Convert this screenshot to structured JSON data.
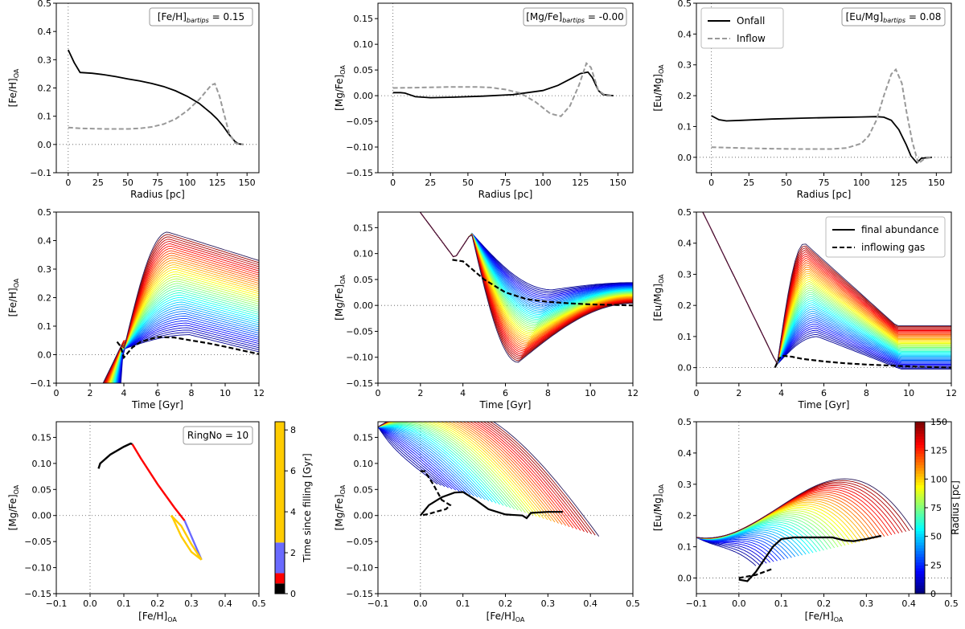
{
  "figure": {
    "colorbar_time": {
      "label": "Time since filling [Gyr]",
      "ticks": [
        "0",
        "2",
        "4",
        "6",
        "8"
      ],
      "segments": [
        {
          "from": 0,
          "to": 0.5,
          "color": "#000000"
        },
        {
          "from": 0.5,
          "to": 1.0,
          "color": "#ff0000"
        },
        {
          "from": 1.0,
          "to": 2.5,
          "color": "#6a6aff"
        },
        {
          "from": 2.5,
          "to": 8.4,
          "color": "#ffcc00"
        }
      ],
      "range": [
        0,
        8.4
      ]
    },
    "colorbar_radius": {
      "label": "Radius [pc]",
      "ticks": [
        "0",
        "25",
        "50",
        "75",
        "100",
        "125",
        "150"
      ],
      "range": [
        0,
        150
      ]
    }
  },
  "chart_data": [
    {
      "id": "p1",
      "type": "line",
      "xlabel": "Radius [pc]",
      "ylabel_main": "[Fe/H]",
      "ylabel_sub": "OA",
      "xlim": [
        -10,
        160
      ],
      "ylim": [
        -0.1,
        0.5
      ],
      "xticks": [
        0,
        25,
        50,
        75,
        100,
        125,
        150
      ],
      "xtick_labels": [
        "0",
        "25",
        "50",
        "75",
        "100",
        "125",
        "150"
      ],
      "yticks": [
        -0.1,
        0,
        0.1,
        0.2,
        0.3,
        0.4,
        0.5
      ],
      "ytick_labels": [
        "−0.1",
        "0.0",
        "0.1",
        "0.2",
        "0.3",
        "0.4",
        "0.5"
      ],
      "annotation": {
        "main": "[Fe/H]",
        "sub": "bartips",
        "value": " = 0.15"
      },
      "series": [
        {
          "name": "Onfall",
          "style": "solid",
          "x": [
            0,
            5,
            10,
            20,
            30,
            40,
            50,
            60,
            70,
            80,
            90,
            100,
            110,
            120,
            125,
            130,
            135,
            140,
            143,
            147
          ],
          "y": [
            0.335,
            0.29,
            0.255,
            0.252,
            0.247,
            0.24,
            0.232,
            0.225,
            0.216,
            0.205,
            0.19,
            0.17,
            0.145,
            0.11,
            0.09,
            0.065,
            0.035,
            0.01,
            0.002,
            0.0
          ]
        },
        {
          "name": "Inflow",
          "style": "dashed",
          "x": [
            0,
            10,
            20,
            30,
            40,
            50,
            60,
            70,
            80,
            90,
            100,
            110,
            115,
            120,
            123,
            127,
            130,
            135,
            140,
            147
          ],
          "y": [
            0.06,
            0.057,
            0.056,
            0.055,
            0.055,
            0.055,
            0.057,
            0.062,
            0.072,
            0.09,
            0.12,
            0.16,
            0.185,
            0.21,
            0.215,
            0.17,
            0.12,
            0.04,
            0.005,
            0.0
          ]
        }
      ]
    },
    {
      "id": "p2",
      "type": "line",
      "xlabel": "Radius [pc]",
      "ylabel_main": "[Mg/Fe]",
      "ylabel_sub": "OA",
      "xlim": [
        -10,
        160
      ],
      "ylim": [
        -0.15,
        0.18
      ],
      "xticks": [
        0,
        25,
        50,
        75,
        100,
        125,
        150
      ],
      "xtick_labels": [
        "0",
        "25",
        "50",
        "75",
        "100",
        "125",
        "150"
      ],
      "yticks": [
        -0.15,
        -0.1,
        -0.05,
        0,
        0.05,
        0.1,
        0.15
      ],
      "ytick_labels": [
        "−0.15",
        "−0.10",
        "−0.05",
        "0.00",
        "0.05",
        "0.10",
        "0.15"
      ],
      "annotation": {
        "main": "[Mg/Fe]",
        "sub": "bartips",
        "value": " = -0.00"
      },
      "series": [
        {
          "name": "Onfall",
          "style": "solid",
          "x": [
            0,
            5,
            8,
            15,
            25,
            40,
            60,
            80,
            100,
            110,
            120,
            125,
            130,
            133,
            137,
            140,
            147
          ],
          "y": [
            0.006,
            0.006,
            0.005,
            -0.002,
            -0.004,
            -0.003,
            -0.001,
            0.002,
            0.01,
            0.02,
            0.035,
            0.043,
            0.046,
            0.035,
            0.01,
            0.002,
            0.0
          ]
        },
        {
          "name": "Inflow",
          "style": "dashed",
          "x": [
            0,
            20,
            40,
            55,
            65,
            75,
            85,
            95,
            105,
            112,
            118,
            124,
            129,
            132,
            137,
            142,
            147
          ],
          "y": [
            0.015,
            0.016,
            0.017,
            0.017,
            0.016,
            0.012,
            0.005,
            -0.012,
            -0.035,
            -0.04,
            -0.02,
            0.02,
            0.063,
            0.055,
            0.01,
            0.0,
            0.0
          ]
        }
      ]
    },
    {
      "id": "p3",
      "type": "line",
      "xlabel": "Radius [pc]",
      "ylabel_main": "[Eu/Mg]",
      "ylabel_sub": "OA",
      "xlim": [
        -10,
        160
      ],
      "ylim": [
        -0.05,
        0.5
      ],
      "xticks": [
        0,
        25,
        50,
        75,
        100,
        125,
        150
      ],
      "xtick_labels": [
        "0",
        "25",
        "50",
        "75",
        "100",
        "125",
        "150"
      ],
      "yticks": [
        0,
        0.1,
        0.2,
        0.3,
        0.4,
        0.5
      ],
      "ytick_labels": [
        "0.0",
        "0.1",
        "0.2",
        "0.3",
        "0.4",
        "0.5"
      ],
      "annotation": {
        "main": "[Eu/Mg]",
        "sub": "bartips",
        "value": " = 0.08"
      },
      "legend": [
        {
          "label": "Onfall",
          "style": "solid"
        },
        {
          "label": "Inflow",
          "style": "dashed"
        }
      ],
      "series": [
        {
          "name": "Onfall",
          "style": "solid",
          "x": [
            0,
            5,
            10,
            20,
            40,
            60,
            80,
            100,
            110,
            115,
            120,
            125,
            130,
            133,
            137,
            140,
            147
          ],
          "y": [
            0.135,
            0.122,
            0.118,
            0.12,
            0.124,
            0.127,
            0.129,
            0.131,
            0.132,
            0.13,
            0.12,
            0.09,
            0.04,
            0.005,
            -0.018,
            -0.003,
            0.0
          ]
        },
        {
          "name": "Inflow",
          "style": "dashed",
          "x": [
            0,
            20,
            40,
            60,
            80,
            90,
            100,
            105,
            110,
            115,
            120,
            123,
            127,
            130,
            134,
            138,
            142,
            147
          ],
          "y": [
            0.033,
            0.03,
            0.028,
            0.027,
            0.027,
            0.03,
            0.045,
            0.07,
            0.12,
            0.2,
            0.27,
            0.285,
            0.24,
            0.15,
            0.05,
            -0.02,
            -0.005,
            0.0
          ]
        }
      ]
    },
    {
      "id": "p4",
      "type": "line",
      "xlabel": "Time [Gyr]",
      "ylabel_main": "[Fe/H]",
      "ylabel_sub": "OA",
      "xlim": [
        0,
        12
      ],
      "ylim": [
        -0.1,
        0.5
      ],
      "xticks": [
        0,
        2,
        4,
        6,
        8,
        10,
        12
      ],
      "xtick_labels": [
        "0",
        "2",
        "4",
        "6",
        "8",
        "10",
        "12"
      ],
      "yticks": [
        -0.1,
        0,
        0.1,
        0.2,
        0.3,
        0.4,
        0.5
      ],
      "ytick_labels": [
        "−0.1",
        "0.0",
        "0.1",
        "0.2",
        "0.3",
        "0.4",
        "0.5"
      ],
      "family": {
        "count": 45,
        "note": "one line per ring radius, colored by radius"
      },
      "series": [
        {
          "name": "inflowing gas",
          "style": "dashed",
          "x": [
            3.6,
            3.8,
            4.0,
            4.5,
            5.0,
            6.0,
            7.0,
            8.0,
            9.0,
            10.0,
            11.0,
            12.0
          ],
          "y": [
            0.045,
            0.03,
            -0.01,
            0.025,
            0.045,
            0.062,
            0.06,
            0.05,
            0.04,
            0.028,
            0.015,
            0.002
          ]
        }
      ]
    },
    {
      "id": "p5",
      "type": "line",
      "xlabel": "Time [Gyr]",
      "ylabel_main": "[Mg/Fe]",
      "ylabel_sub": "OA",
      "xlim": [
        0,
        12
      ],
      "ylim": [
        -0.15,
        0.18
      ],
      "xticks": [
        0,
        2,
        4,
        6,
        8,
        10,
        12
      ],
      "xtick_labels": [
        "0",
        "2",
        "4",
        "6",
        "8",
        "10",
        "12"
      ],
      "yticks": [
        -0.15,
        -0.1,
        -0.05,
        0,
        0.05,
        0.1,
        0.15
      ],
      "ytick_labels": [
        "−0.15",
        "−0.10",
        "−0.05",
        "0.00",
        "0.05",
        "0.10",
        "0.15"
      ],
      "family": {
        "count": 45,
        "note": "one line per ring radius, colored by radius"
      },
      "series": [
        {
          "name": "inflowing gas",
          "style": "dashed",
          "x": [
            3.5,
            4.0,
            5.0,
            6.0,
            7.0,
            8.0,
            9.0,
            10.0,
            11.0,
            12.0
          ],
          "y": [
            0.088,
            0.085,
            0.05,
            0.025,
            0.012,
            0.007,
            0.004,
            0.002,
            0.001,
            0.0
          ]
        }
      ]
    },
    {
      "id": "p6",
      "type": "line",
      "xlabel": "Time [Gyr]",
      "ylabel_main": "[Eu/Mg]",
      "ylabel_sub": "OA",
      "xlim": [
        0,
        12
      ],
      "ylim": [
        -0.05,
        0.5
      ],
      "xticks": [
        0,
        2,
        4,
        6,
        8,
        10,
        12
      ],
      "xtick_labels": [
        "0",
        "2",
        "4",
        "6",
        "8",
        "10",
        "12"
      ],
      "yticks": [
        0,
        0.1,
        0.2,
        0.3,
        0.4,
        0.5
      ],
      "ytick_labels": [
        "0.0",
        "0.1",
        "0.2",
        "0.3",
        "0.4",
        "0.5"
      ],
      "legend": [
        {
          "label": "final abundance",
          "style": "solid"
        },
        {
          "label": "inflowing gas",
          "style": "dashed"
        }
      ],
      "family": {
        "count": 45,
        "note": "one line per ring radius, colored by radius"
      },
      "series": [
        {
          "name": "inflowing gas",
          "style": "dashed",
          "x": [
            3.7,
            3.9,
            4.1,
            4.5,
            5.0,
            6.0,
            7.0,
            8.0,
            9.0,
            10.0,
            11.0,
            12.0
          ],
          "y": [
            0.0,
            0.03,
            0.038,
            0.035,
            0.028,
            0.02,
            0.014,
            0.01,
            0.007,
            0.004,
            0.002,
            0.0
          ]
        }
      ]
    },
    {
      "id": "p7",
      "type": "line",
      "xlabel_main": "[Fe/H]",
      "xlabel_sub": "OA",
      "ylabel_main": "[Mg/Fe]",
      "ylabel_sub": "OA",
      "xlim": [
        -0.1,
        0.5
      ],
      "ylim": [
        -0.15,
        0.18
      ],
      "xticks": [
        -0.1,
        0,
        0.1,
        0.2,
        0.3,
        0.4,
        0.5
      ],
      "xtick_labels": [
        "−0.1",
        "0.0",
        "0.1",
        "0.2",
        "0.3",
        "0.4",
        "0.5"
      ],
      "yticks": [
        -0.15,
        -0.1,
        -0.05,
        0,
        0.05,
        0.1,
        0.15
      ],
      "ytick_labels": [
        "−0.15",
        "−0.10",
        "−0.05",
        "0.00",
        "0.05",
        "0.10",
        "0.15"
      ],
      "annotation": {
        "label": "RingNo = 10"
      },
      "series": [
        {
          "name": "0-0.5 Gyr",
          "color": "#000000",
          "x": [
            0.025,
            0.03,
            0.06,
            0.1,
            0.12,
            0.125
          ],
          "y": [
            0.09,
            0.1,
            0.117,
            0.132,
            0.138,
            0.137
          ]
        },
        {
          "name": "0.5-1 Gyr",
          "color": "#ff0000",
          "x": [
            0.125,
            0.15,
            0.2,
            0.25,
            0.28
          ],
          "y": [
            0.137,
            0.11,
            0.06,
            0.015,
            -0.01
          ]
        },
        {
          "name": "1-2.5 Gyr",
          "color": "#6a6aff",
          "x": [
            0.28,
            0.3,
            0.33
          ],
          "y": [
            -0.01,
            -0.04,
            -0.085
          ]
        },
        {
          "name": "2.5+ Gyr",
          "color": "#ffcc00",
          "x": [
            0.33,
            0.3,
            0.27,
            0.24,
            0.245,
            0.27,
            0.3,
            0.33
          ],
          "y": [
            -0.085,
            -0.055,
            -0.02,
            0.0,
            -0.005,
            -0.04,
            -0.07,
            -0.085
          ]
        }
      ]
    },
    {
      "id": "p8",
      "type": "line",
      "xlabel_main": "[Fe/H]",
      "xlabel_sub": "OA",
      "ylabel_main": "[Mg/Fe]",
      "ylabel_sub": "OA",
      "xlim": [
        -0.1,
        0.5
      ],
      "ylim": [
        -0.15,
        0.18
      ],
      "xticks": [
        -0.1,
        0,
        0.1,
        0.2,
        0.3,
        0.4,
        0.5
      ],
      "xtick_labels": [
        "−0.1",
        "0.0",
        "0.1",
        "0.2",
        "0.3",
        "0.4",
        "0.5"
      ],
      "yticks": [
        -0.15,
        -0.1,
        -0.05,
        0,
        0.05,
        0.1,
        0.15
      ],
      "ytick_labels": [
        "−0.15",
        "−0.10",
        "−0.05",
        "0.00",
        "0.05",
        "0.10",
        "0.15"
      ],
      "family": {
        "count": 45,
        "note": "one line per ring radius, colored by radius"
      },
      "series": [
        {
          "name": "final abundance",
          "style": "solid",
          "x": [
            0.0,
            0.02,
            0.05,
            0.08,
            0.1,
            0.13,
            0.16,
            0.2,
            0.24,
            0.25,
            0.26,
            0.3,
            0.335
          ],
          "y": [
            0.0,
            0.02,
            0.035,
            0.044,
            0.045,
            0.03,
            0.012,
            0.002,
            0.0,
            -0.005,
            0.005,
            0.007,
            0.007
          ]
        },
        {
          "name": "inflowing gas",
          "style": "dashed",
          "x": [
            0.0,
            0.01,
            0.03,
            0.05,
            0.07,
            0.06,
            0.04,
            0.02,
            0.0
          ],
          "y": [
            0.085,
            0.085,
            0.06,
            0.03,
            0.02,
            0.012,
            0.008,
            0.003,
            0.0
          ]
        }
      ]
    },
    {
      "id": "p9",
      "type": "line",
      "xlabel_main": "[Fe/H]",
      "xlabel_sub": "OA",
      "ylabel_main": "[Eu/Mg]",
      "ylabel_sub": "OA",
      "xlim": [
        -0.1,
        0.5
      ],
      "ylim": [
        -0.05,
        0.5
      ],
      "xticks": [
        -0.1,
        0,
        0.1,
        0.2,
        0.3,
        0.4,
        0.5
      ],
      "xtick_labels": [
        "−0.1",
        "0.0",
        "0.1",
        "0.2",
        "0.3",
        "0.4",
        "0.5"
      ],
      "yticks": [
        0,
        0.1,
        0.2,
        0.3,
        0.4,
        0.5
      ],
      "ytick_labels": [
        "0.0",
        "0.1",
        "0.2",
        "0.3",
        "0.4",
        "0.5"
      ],
      "family": {
        "count": 45,
        "note": "one line per ring radius, colored by radius"
      },
      "series": [
        {
          "name": "final abundance",
          "style": "solid",
          "x": [
            0.0,
            0.02,
            0.04,
            0.06,
            0.08,
            0.1,
            0.13,
            0.18,
            0.22,
            0.25,
            0.27,
            0.3,
            0.335
          ],
          "y": [
            -0.005,
            -0.01,
            0.02,
            0.06,
            0.1,
            0.125,
            0.13,
            0.13,
            0.13,
            0.12,
            0.118,
            0.125,
            0.135
          ]
        },
        {
          "name": "inflowing gas",
          "style": "dashed",
          "x": [
            0.0,
            0.02,
            0.04,
            0.06,
            0.08
          ],
          "y": [
            0.0,
            0.005,
            0.01,
            0.02,
            0.03
          ]
        }
      ]
    }
  ]
}
